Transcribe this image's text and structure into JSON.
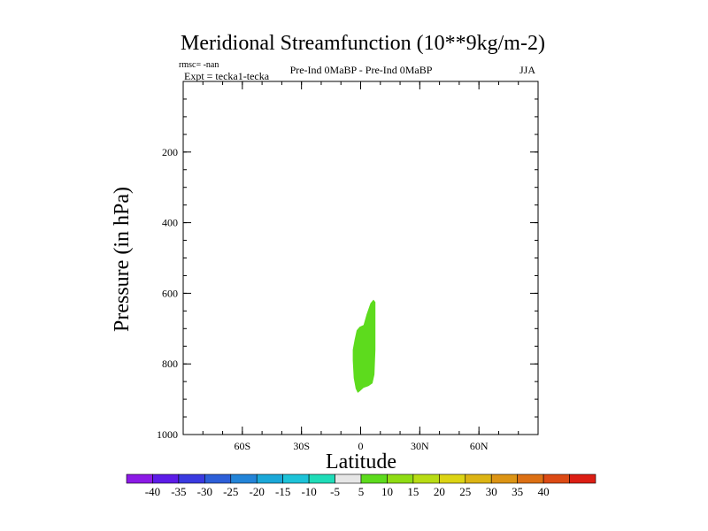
{
  "chart_data": {
    "type": "contour",
    "title": "Meridional Streamfunction (10**9kg/m-2)",
    "annotations": {
      "rmsc": "rmsc= -nan",
      "expt": "Expt = tecka1-tecka",
      "case": "Pre-Ind 0MaBP - Pre-Ind 0MaBP",
      "season": "JJA"
    },
    "xlabel": "Latitude",
    "ylabel": "Pressure (in hPa)",
    "xlim": [
      -90,
      90
    ],
    "ylim": [
      0,
      1000
    ],
    "y_reversed": true,
    "x_ticks": [
      {
        "value": -60,
        "label": "60S"
      },
      {
        "value": -30,
        "label": "30S"
      },
      {
        "value": 0,
        "label": "0"
      },
      {
        "value": 30,
        "label": "30N"
      },
      {
        "value": 60,
        "label": "60N"
      }
    ],
    "x_minor_step": 10,
    "y_ticks": [
      {
        "value": 200,
        "label": "200"
      },
      {
        "value": 400,
        "label": "400"
      },
      {
        "value": 600,
        "label": "600"
      },
      {
        "value": 800,
        "label": "800"
      },
      {
        "value": 1000,
        "label": "1000"
      }
    ],
    "y_minor_step": 50,
    "contour_regions": [
      {
        "level": "5 to 10",
        "color": "#5ddb1d",
        "points": [
          [
            6.5,
            618
          ],
          [
            7.5,
            625
          ],
          [
            7.5,
            680
          ],
          [
            7.5,
            760
          ],
          [
            7.0,
            830
          ],
          [
            6.0,
            855
          ],
          [
            4.0,
            863
          ],
          [
            1.5,
            868
          ],
          [
            -0.5,
            878
          ],
          [
            -1.5,
            882
          ],
          [
            -2.5,
            870
          ],
          [
            -3.5,
            840
          ],
          [
            -4.0,
            790
          ],
          [
            -4.0,
            760
          ],
          [
            -3.0,
            730
          ],
          [
            -2.0,
            705
          ],
          [
            -0.5,
            695
          ],
          [
            1.5,
            690
          ],
          [
            3.0,
            660
          ],
          [
            5.0,
            628
          ]
        ]
      }
    ],
    "colorbar": {
      "colors": [
        "#8c1ae6",
        "#5d1ce8",
        "#3a3ae0",
        "#2d5fd8",
        "#2384d8",
        "#1ba8d8",
        "#1dc3d8",
        "#1fdcb8",
        "#e6e6e6",
        "#5ddb1d",
        "#8fdc14",
        "#b8dc14",
        "#dcd414",
        "#dcb414",
        "#dc9414",
        "#dc7014",
        "#dc4a14",
        "#dc1e14"
      ],
      "labels": [
        "-40",
        "-35",
        "-30",
        "-25",
        "-20",
        "-15",
        "-10",
        "-5",
        "5",
        "10",
        "15",
        "20",
        "25",
        "30",
        "35",
        "40"
      ]
    }
  }
}
